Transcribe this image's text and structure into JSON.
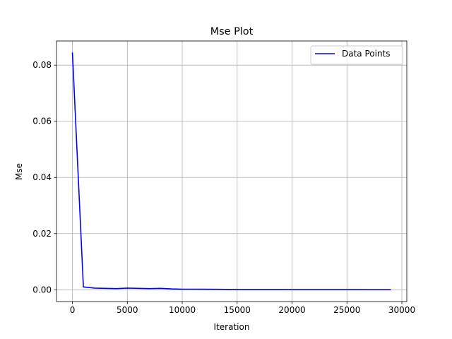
{
  "chart_data": {
    "type": "line",
    "title": "Mse Plot",
    "xlabel": "Iteration",
    "ylabel": "Mse",
    "xlim": [
      -1450,
      30450
    ],
    "ylim": [
      -0.0042,
      0.0886
    ],
    "xticks": [
      0,
      5000,
      10000,
      15000,
      20000,
      25000,
      30000
    ],
    "xtick_labels": [
      "0",
      "5000",
      "10000",
      "15000",
      "20000",
      "25000",
      "30000"
    ],
    "yticks": [
      0.0,
      0.02,
      0.04,
      0.06,
      0.08
    ],
    "ytick_labels": [
      "0.00",
      "0.02",
      "0.04",
      "0.06",
      "0.08"
    ],
    "grid": true,
    "legend_position": "top-right",
    "series": [
      {
        "name": "Data Points",
        "color": "#0000ff",
        "x": [
          0,
          1000,
          2000,
          3000,
          4000,
          5000,
          6000,
          7000,
          8000,
          9000,
          10000,
          11000,
          12000,
          13000,
          14000,
          15000,
          16000,
          17000,
          18000,
          19000,
          20000,
          21000,
          22000,
          23000,
          24000,
          25000,
          26000,
          27000,
          28000,
          29000
        ],
        "y": [
          0.0845,
          0.001,
          0.0006,
          0.0005,
          0.0004,
          0.0006,
          0.0005,
          0.0004,
          0.0005,
          0.0003,
          0.0002,
          0.0002,
          0.00018,
          0.00015,
          0.00012,
          0.0001,
          0.0001,
          9e-05,
          8e-05,
          8e-05,
          7e-05,
          7e-05,
          6e-05,
          6e-05,
          5e-05,
          5e-05,
          5e-05,
          4e-05,
          4e-05,
          4e-05
        ]
      }
    ]
  }
}
